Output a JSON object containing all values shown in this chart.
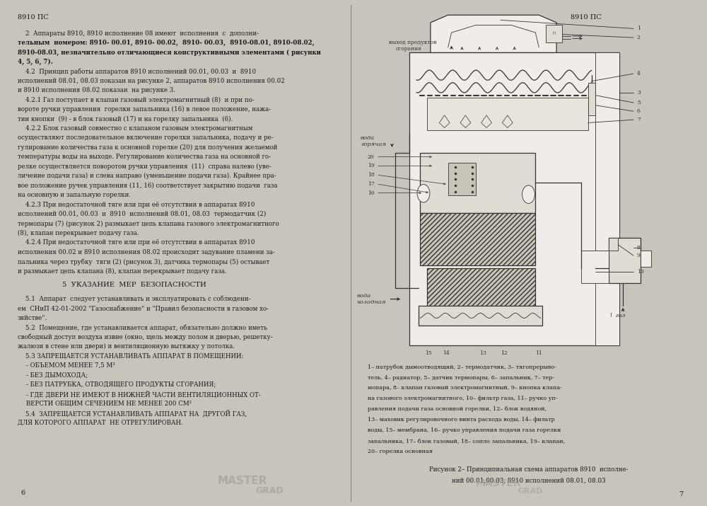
{
  "bg_color": "#c8c4bc",
  "left_bg": "#f0ede8",
  "right_bg": "#f5f2ee",
  "text_color": "#1a1a1a",
  "lc": "#333333",
  "caption_lines": [
    "1– патрубок дымоотводящий, 2– термодатчик, 3– тягопрерыво-",
    "тель, 4– радиатор, 5– датчик термопары, 6– запальник, 7– тер-",
    "мопара, 8– клапан газовый электромагнитный, 9– кнопка клапа-",
    "на газового электромагнитного, 10– фильтр газа, 11– ручко уп-",
    "равления подачи газа основной горелки, 12– блок водяной,",
    "13– маховик регулировочного винта расхода воды, 14– фильтр",
    "воды, 15– мембрана, 16– ручко управления подачи газа горелки",
    "запальника, 17– блок газовый, 18– сопло запальника, 19– клапан,",
    "20– горелка основная"
  ],
  "figure_caption": [
    "Рисунок 2– Принципиальная схема аппаратов 8910  исполне-",
    "ний 00.01,00.03, 8910 исполнений 08.01, 08.03"
  ]
}
